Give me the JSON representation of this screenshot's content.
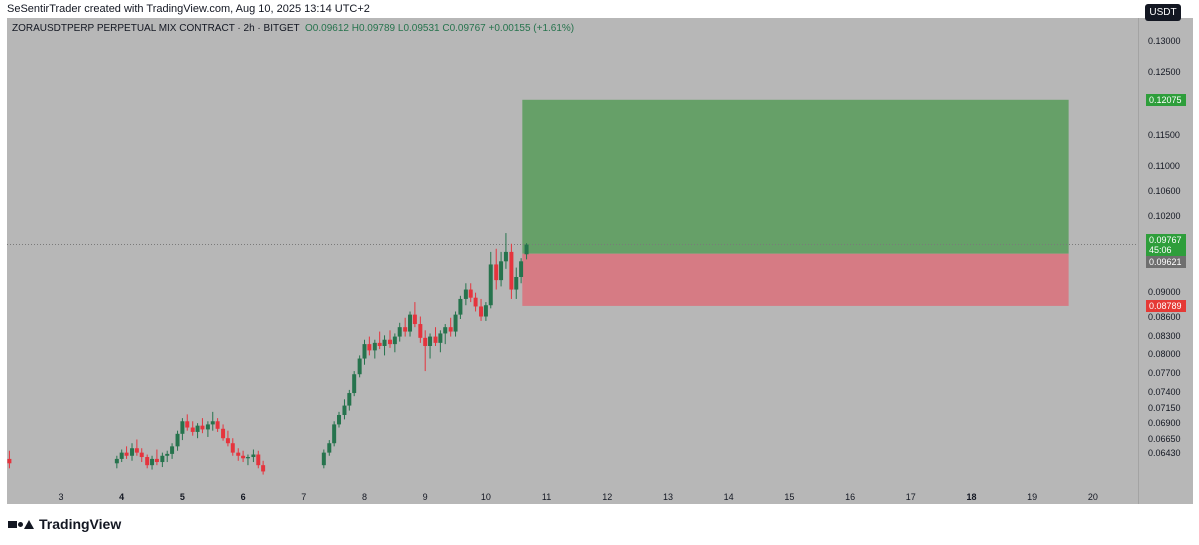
{
  "header": {
    "attribution": "SeSentirTrader created with TradingView.com, Aug 10, 2025 13:14 UTC+2"
  },
  "symbol": {
    "title": "ZORAUSDTPERP PERPETUAL MIX CONTRACT · 2h · BITGET",
    "ohlc": "O0.09612 H0.09789 L0.09531 C0.09767 +0.00155 (+1.61%)"
  },
  "currency_label": "USDT",
  "footer": {
    "brand": "TradingView"
  },
  "colors": {
    "up": "#26734d",
    "down": "#e5343d",
    "profit_zone": "#66a068",
    "loss_zone": "#d67b84",
    "background": "#b7b7b7"
  },
  "price_tags": {
    "take_profit": "0.12075",
    "last_price": "0.09767",
    "countdown": "45:06",
    "entry": "0.09621",
    "stop_loss": "0.08789"
  },
  "chart_data": {
    "type": "candlestick",
    "title": "",
    "y_ticks": [
      "0.13000",
      "0.12500",
      "0.11500",
      "0.11000",
      "0.10600",
      "0.10200",
      "0.09000",
      "0.08600",
      "0.08300",
      "0.08000",
      "0.07700",
      "0.07400",
      "0.07150",
      "0.06900",
      "0.06650",
      "0.06430"
    ],
    "y_tick_values": [
      0.13,
      0.125,
      0.115,
      0.11,
      0.106,
      0.102,
      0.09,
      0.086,
      0.083,
      0.08,
      0.077,
      0.074,
      0.0715,
      0.069,
      0.0665,
      0.0643
    ],
    "x_ticks": [
      {
        "label": "3",
        "day": 3,
        "bold": false
      },
      {
        "label": "4",
        "day": 4,
        "bold": true
      },
      {
        "label": "5",
        "day": 5,
        "bold": true
      },
      {
        "label": "6",
        "day": 6,
        "bold": true
      },
      {
        "label": "7",
        "day": 7,
        "bold": false
      },
      {
        "label": "8",
        "day": 8,
        "bold": false
      },
      {
        "label": "9",
        "day": 9,
        "bold": false
      },
      {
        "label": "10",
        "day": 10,
        "bold": false
      },
      {
        "label": "11",
        "day": 11,
        "bold": false
      },
      {
        "label": "12",
        "day": 12,
        "bold": false
      },
      {
        "label": "13",
        "day": 13,
        "bold": false
      },
      {
        "label": "14",
        "day": 14,
        "bold": false
      },
      {
        "label": "15",
        "day": 15,
        "bold": false
      },
      {
        "label": "16",
        "day": 16,
        "bold": false
      },
      {
        "label": "17",
        "day": 17,
        "bold": false
      },
      {
        "label": "18",
        "day": 18,
        "bold": true
      },
      {
        "label": "19",
        "day": 19,
        "bold": false
      },
      {
        "label": "20",
        "day": 20,
        "bold": false
      }
    ],
    "position": {
      "entry": 0.09621,
      "take_profit": 0.12075,
      "stop_loss": 0.08789,
      "start_day": 10.6,
      "end_day": 19.6
    },
    "candles": [
      [
        2.15,
        0.0635,
        0.0648,
        0.062,
        0.0628
      ],
      [
        3.92,
        0.0628,
        0.064,
        0.062,
        0.0635
      ],
      [
        4.0,
        0.0635,
        0.065,
        0.063,
        0.0645
      ],
      [
        4.08,
        0.0645,
        0.0655,
        0.0635,
        0.064
      ],
      [
        4.17,
        0.064,
        0.066,
        0.0632,
        0.0652
      ],
      [
        4.25,
        0.0652,
        0.0666,
        0.064,
        0.0645
      ],
      [
        4.33,
        0.0645,
        0.0652,
        0.063,
        0.0638
      ],
      [
        4.42,
        0.0638,
        0.0642,
        0.062,
        0.0625
      ],
      [
        4.5,
        0.0625,
        0.064,
        0.0618,
        0.0635
      ],
      [
        4.58,
        0.0635,
        0.065,
        0.0625,
        0.063
      ],
      [
        4.67,
        0.063,
        0.0645,
        0.0622,
        0.064
      ],
      [
        4.75,
        0.064,
        0.0648,
        0.063,
        0.0643
      ],
      [
        4.83,
        0.0643,
        0.066,
        0.0635,
        0.0655
      ],
      [
        4.92,
        0.0655,
        0.068,
        0.0648,
        0.0675
      ],
      [
        5.0,
        0.0675,
        0.07,
        0.0665,
        0.0695
      ],
      [
        5.08,
        0.0695,
        0.0706,
        0.068,
        0.0685
      ],
      [
        5.17,
        0.0685,
        0.0695,
        0.0672,
        0.0678
      ],
      [
        5.25,
        0.0678,
        0.0692,
        0.0668,
        0.0688
      ],
      [
        5.33,
        0.0688,
        0.07,
        0.0676,
        0.0682
      ],
      [
        5.42,
        0.0682,
        0.0695,
        0.067,
        0.069
      ],
      [
        5.5,
        0.069,
        0.071,
        0.068,
        0.0695
      ],
      [
        5.58,
        0.0695,
        0.07,
        0.0678,
        0.0683
      ],
      [
        5.67,
        0.0683,
        0.069,
        0.0664,
        0.0668
      ],
      [
        5.75,
        0.0668,
        0.068,
        0.0655,
        0.066
      ],
      [
        5.83,
        0.066,
        0.0668,
        0.064,
        0.0645
      ],
      [
        5.92,
        0.0645,
        0.0652,
        0.0632,
        0.064
      ],
      [
        6.0,
        0.064,
        0.0648,
        0.063,
        0.0636
      ],
      [
        6.08,
        0.0636,
        0.0642,
        0.0625,
        0.0638
      ],
      [
        6.17,
        0.0638,
        0.065,
        0.063,
        0.0642
      ],
      [
        6.25,
        0.0642,
        0.0648,
        0.062,
        0.0625
      ],
      [
        6.33,
        0.0625,
        0.0632,
        0.061,
        0.0615
      ],
      [
        7.33,
        0.0625,
        0.065,
        0.062,
        0.0645
      ],
      [
        7.42,
        0.0645,
        0.0665,
        0.064,
        0.066
      ],
      [
        7.5,
        0.066,
        0.0695,
        0.0655,
        0.069
      ],
      [
        7.58,
        0.069,
        0.071,
        0.0685,
        0.0705
      ],
      [
        7.67,
        0.0705,
        0.073,
        0.0698,
        0.072
      ],
      [
        7.75,
        0.072,
        0.0745,
        0.0712,
        0.074
      ],
      [
        7.83,
        0.074,
        0.0775,
        0.0735,
        0.077
      ],
      [
        7.92,
        0.077,
        0.08,
        0.0765,
        0.0795
      ],
      [
        8.0,
        0.0795,
        0.0825,
        0.0785,
        0.0818
      ],
      [
        8.08,
        0.0818,
        0.083,
        0.08,
        0.0808
      ],
      [
        8.17,
        0.0808,
        0.0825,
        0.0795,
        0.082
      ],
      [
        8.25,
        0.082,
        0.0838,
        0.081,
        0.0815
      ],
      [
        8.33,
        0.0815,
        0.0832,
        0.08,
        0.0825
      ],
      [
        8.42,
        0.0825,
        0.084,
        0.0812,
        0.0818
      ],
      [
        8.5,
        0.0818,
        0.0835,
        0.0805,
        0.083
      ],
      [
        8.58,
        0.083,
        0.0852,
        0.0822,
        0.0845
      ],
      [
        8.67,
        0.0845,
        0.086,
        0.083,
        0.0838
      ],
      [
        8.75,
        0.0838,
        0.087,
        0.083,
        0.0865
      ],
      [
        8.83,
        0.0865,
        0.0885,
        0.0845,
        0.085
      ],
      [
        8.92,
        0.085,
        0.0862,
        0.082,
        0.0828
      ],
      [
        9.0,
        0.0828,
        0.084,
        0.0775,
        0.0815
      ],
      [
        9.08,
        0.0815,
        0.0835,
        0.0795,
        0.083
      ],
      [
        9.17,
        0.083,
        0.0845,
        0.0815,
        0.082
      ],
      [
        9.25,
        0.082,
        0.084,
        0.0805,
        0.0835
      ],
      [
        9.33,
        0.0835,
        0.085,
        0.0818,
        0.0845
      ],
      [
        9.42,
        0.0845,
        0.086,
        0.083,
        0.0838
      ],
      [
        9.5,
        0.0838,
        0.087,
        0.083,
        0.0865
      ],
      [
        9.58,
        0.0865,
        0.0895,
        0.0858,
        0.089
      ],
      [
        9.67,
        0.089,
        0.0915,
        0.088,
        0.0905
      ],
      [
        9.75,
        0.0905,
        0.0915,
        0.0885,
        0.0892
      ],
      [
        9.83,
        0.0892,
        0.09,
        0.087,
        0.0878
      ],
      [
        9.92,
        0.0878,
        0.089,
        0.0855,
        0.0862
      ],
      [
        10.0,
        0.0862,
        0.0885,
        0.0855,
        0.088
      ],
      [
        10.08,
        0.088,
        0.0965,
        0.0875,
        0.0945
      ],
      [
        10.17,
        0.0945,
        0.097,
        0.0905,
        0.092
      ],
      [
        10.25,
        0.092,
        0.0965,
        0.091,
        0.095
      ],
      [
        10.33,
        0.095,
        0.0995,
        0.0938,
        0.0965
      ],
      [
        10.42,
        0.0965,
        0.0978,
        0.089,
        0.0905
      ],
      [
        10.5,
        0.0905,
        0.094,
        0.089,
        0.0925
      ],
      [
        10.58,
        0.0925,
        0.0955,
        0.0915,
        0.095
      ],
      [
        10.67,
        0.09612,
        0.09789,
        0.09531,
        0.09767
      ]
    ]
  }
}
